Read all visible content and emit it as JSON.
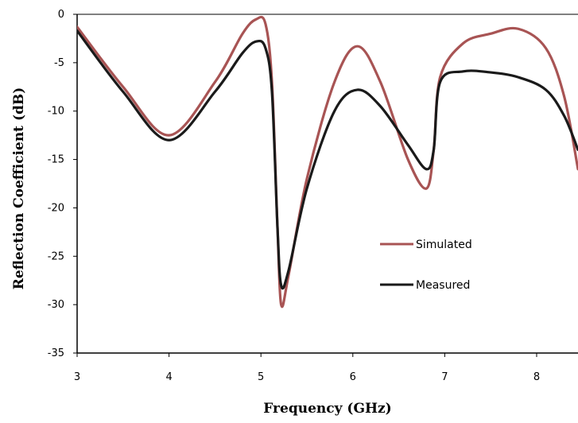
{
  "chart_data": {
    "type": "line",
    "title": "",
    "xlabel": "Frequency (GHz)",
    "ylabel": "Reflection Coefficient (dB)",
    "xlim": [
      3,
      8.45
    ],
    "ylim": [
      -35,
      0
    ],
    "x_ticks": [
      3,
      4,
      5,
      6,
      7,
      8
    ],
    "y_ticks": [
      0,
      -5,
      -10,
      -15,
      -20,
      -25,
      -30,
      -35
    ],
    "grid": false,
    "legend_position": "center-right",
    "series": [
      {
        "name": "Simulated",
        "color": "#a85454",
        "x": [
          3.0,
          3.5,
          4.0,
          4.5,
          4.8,
          4.95,
          5.05,
          5.12,
          5.18,
          5.22,
          5.3,
          5.5,
          5.8,
          6.05,
          6.3,
          6.6,
          6.8,
          6.88,
          6.95,
          7.2,
          7.5,
          7.8,
          8.1,
          8.3,
          8.45
        ],
        "y": [
          -1.3,
          -7.5,
          -12.5,
          -7.0,
          -2.0,
          -0.5,
          -1.0,
          -7.0,
          -22.0,
          -30.0,
          -27.0,
          -17.0,
          -7.0,
          -3.3,
          -7.0,
          -15.0,
          -18.0,
          -14.0,
          -6.5,
          -3.0,
          -2.0,
          -1.5,
          -3.5,
          -8.5,
          -16.0
        ]
      },
      {
        "name": "Measured",
        "color": "#1a1a1a",
        "x": [
          3.0,
          3.5,
          4.0,
          4.5,
          4.8,
          4.95,
          5.05,
          5.12,
          5.18,
          5.22,
          5.3,
          5.5,
          5.8,
          6.05,
          6.3,
          6.6,
          6.8,
          6.88,
          6.95,
          7.2,
          7.5,
          7.8,
          8.1,
          8.3,
          8.45
        ],
        "y": [
          -1.7,
          -8.0,
          -13.0,
          -8.0,
          -4.0,
          -2.8,
          -3.5,
          -8.0,
          -22.0,
          -28.0,
          -26.5,
          -18.0,
          -10.0,
          -7.8,
          -9.5,
          -13.5,
          -16.0,
          -14.0,
          -7.0,
          -5.9,
          -6.0,
          -6.5,
          -7.8,
          -10.5,
          -14.0
        ]
      }
    ]
  }
}
